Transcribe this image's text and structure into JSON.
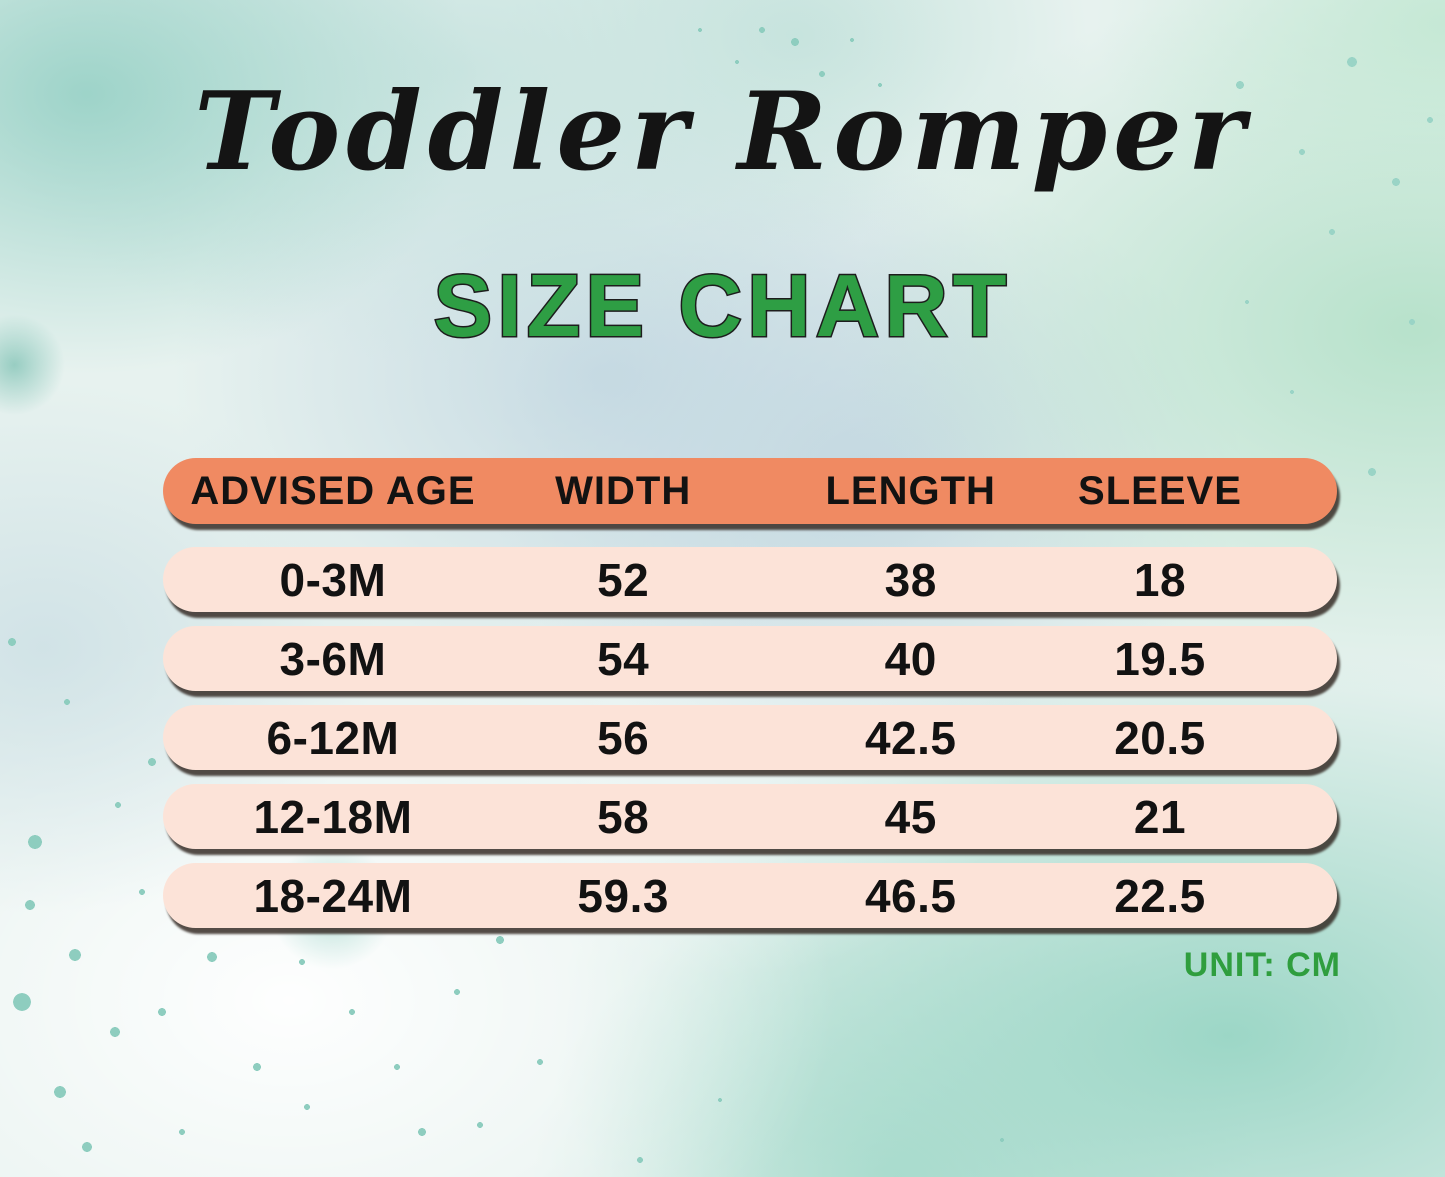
{
  "title": "Toddler Romper",
  "subtitle": "SIZE CHART",
  "unit_label": "UNIT: CM",
  "colors": {
    "header_bg": "#F08A62",
    "row_bg": "#FCE3D8",
    "heading_green": "#2E9E44",
    "unit_green": "#2F9E3E",
    "title_color": "#141414",
    "cell_text": "#121212"
  },
  "chart_data": {
    "type": "table",
    "columns": [
      "ADVISED AGE",
      "WIDTH",
      "LENGTH",
      "SLEEVE"
    ],
    "rows": [
      [
        "0-3M",
        "52",
        "38",
        "18"
      ],
      [
        "3-6M",
        "54",
        "40",
        "19.5"
      ],
      [
        "6-12M",
        "56",
        "42.5",
        "20.5"
      ],
      [
        "12-18M",
        "58",
        "45",
        "21"
      ],
      [
        "18-24M",
        "59.3",
        "46.5",
        "22.5"
      ]
    ],
    "title": "Toddler Romper — Size Chart",
    "unit": "cm"
  }
}
